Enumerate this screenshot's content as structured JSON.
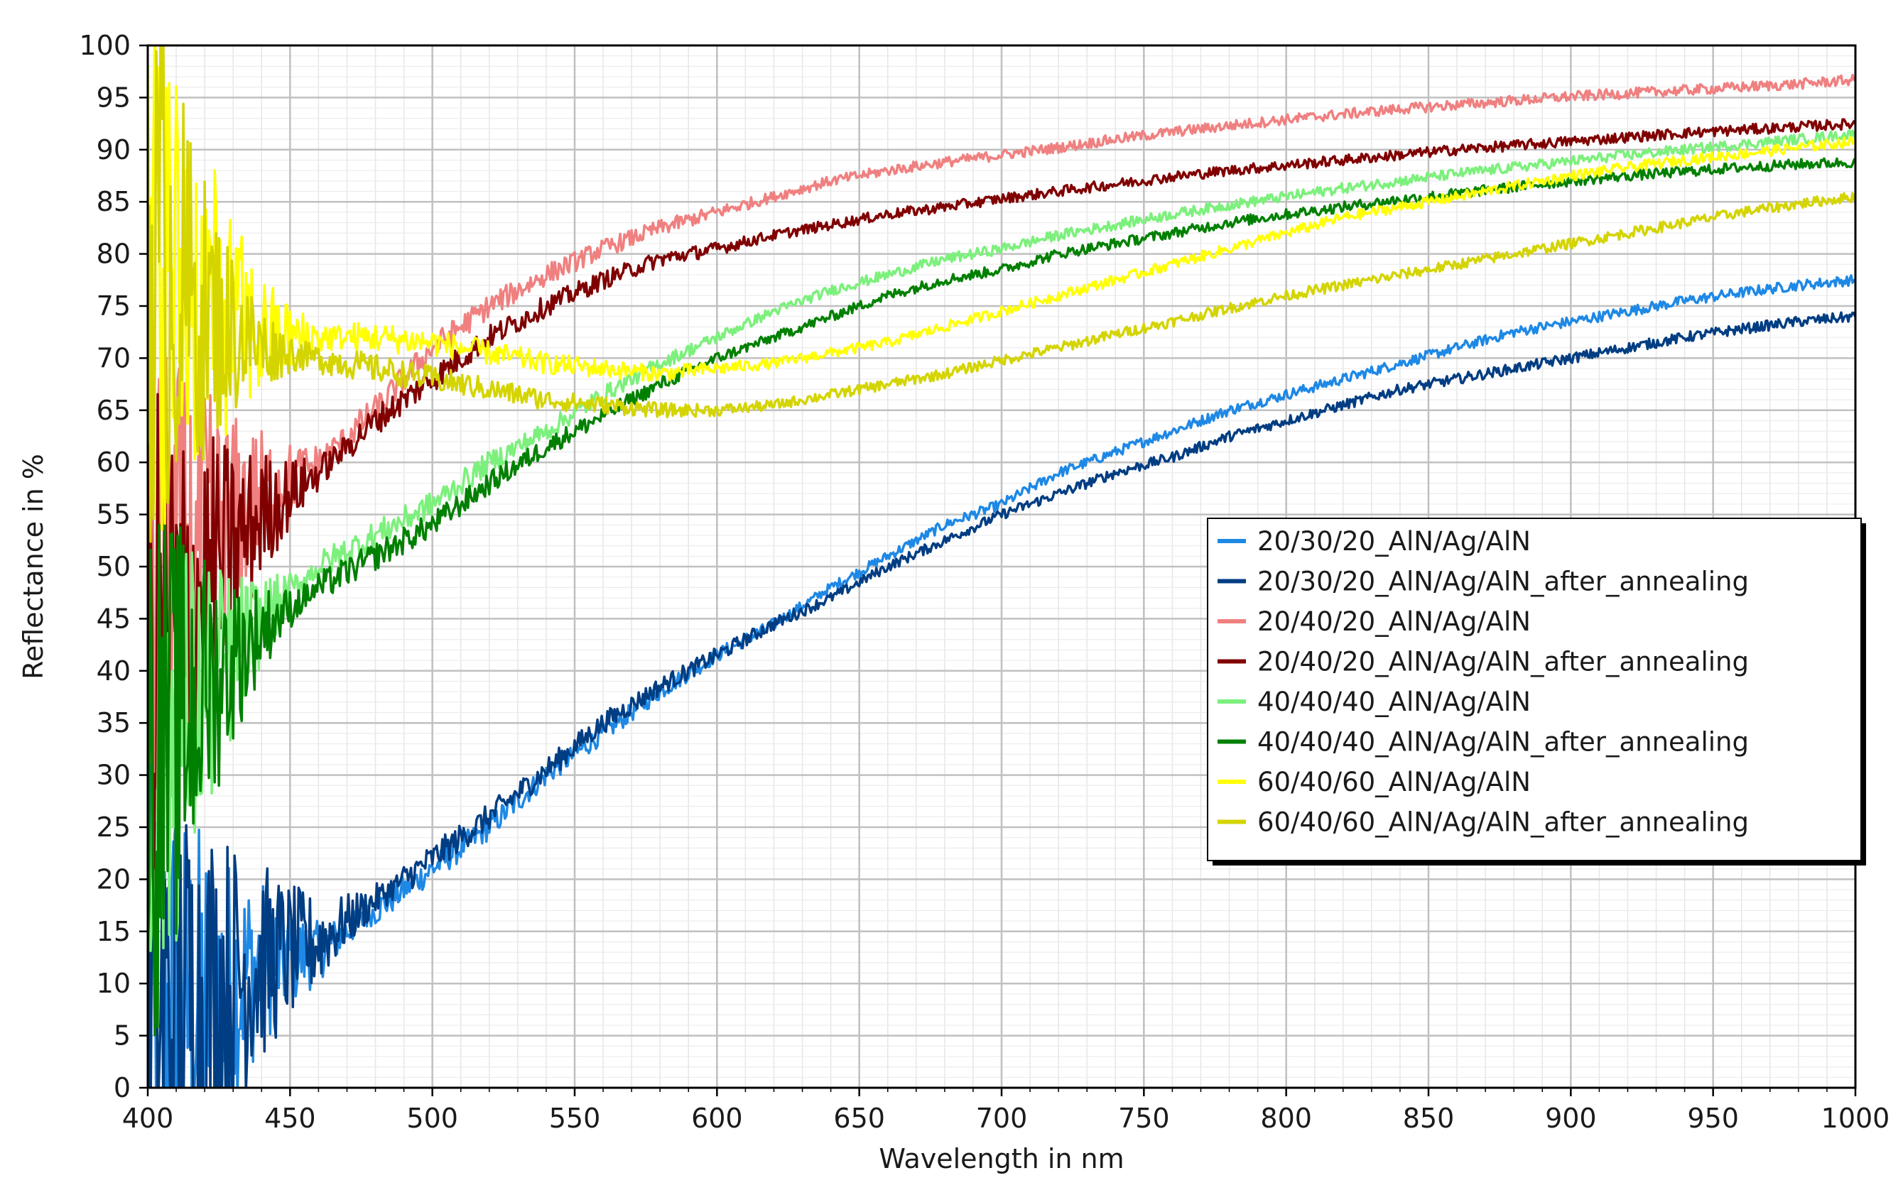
{
  "chart_data": {
    "type": "line",
    "title": "",
    "xlabel": "Wavelength in nm",
    "ylabel": "Reflectance in %",
    "xlim": [
      400,
      1000
    ],
    "ylim": [
      0,
      100
    ],
    "x_ticks": [
      400,
      450,
      500,
      550,
      600,
      650,
      700,
      750,
      800,
      850,
      900,
      950,
      1000
    ],
    "y_ticks": [
      0,
      5,
      10,
      15,
      20,
      25,
      30,
      35,
      40,
      45,
      50,
      55,
      60,
      65,
      70,
      75,
      80,
      85,
      90,
      95,
      100
    ],
    "grid": true,
    "legend_position": "right",
    "x": [
      400,
      420,
      440,
      460,
      480,
      500,
      520,
      540,
      560,
      580,
      600,
      620,
      640,
      660,
      680,
      700,
      720,
      740,
      760,
      780,
      800,
      820,
      840,
      860,
      880,
      900,
      920,
      940,
      960,
      980,
      1000
    ],
    "series": [
      {
        "name": "20/30/20_AlN/Ag/AlN",
        "color": "#1e88e5",
        "noisy_until": 480,
        "values": [
          5,
          8,
          12,
          13,
          17,
          21,
          25,
          30,
          34,
          38,
          41.5,
          44.5,
          48,
          51,
          54,
          56,
          59,
          61,
          63,
          65,
          66.5,
          68,
          69.5,
          71,
          72.5,
          73.5,
          74.5,
          75.5,
          76.3,
          77,
          77.5
        ]
      },
      {
        "name": "20/30/20_AlN/Ag/AlN_after_annealing",
        "color": "#003d82",
        "noisy_until": 490,
        "values": [
          5,
          9,
          12,
          14,
          18,
          22,
          26,
          30.5,
          35,
          38.5,
          41.5,
          44.5,
          47,
          50,
          52.5,
          55,
          57,
          59,
          60.5,
          62.5,
          64,
          65.5,
          67,
          68,
          69,
          70,
          71,
          72,
          72.8,
          73.5,
          74
        ]
      },
      {
        "name": "20/40/20_AlN/Ag/AlN",
        "color": "#f08080",
        "noisy_until": 470,
        "values": [
          45,
          52,
          57,
          60,
          65,
          71,
          75,
          78,
          80.5,
          82.5,
          84,
          85.5,
          87,
          88,
          88.8,
          89.5,
          90.2,
          91,
          91.7,
          92.3,
          92.9,
          93.4,
          93.9,
          94.3,
          94.7,
          95.1,
          95.4,
          95.7,
          96,
          96.3,
          96.7
        ]
      },
      {
        "name": "20/40/20_AlN/Ag/AlN_after_annealing",
        "color": "#800000",
        "noisy_until": 470,
        "values": [
          40,
          48,
          55,
          59,
          64,
          68,
          72,
          75,
          77.5,
          79.5,
          80.5,
          81.8,
          82.8,
          83.8,
          84.5,
          85.3,
          86,
          86.7,
          87.4,
          88,
          88.5,
          89,
          89.5,
          90,
          90.4,
          90.8,
          91.2,
          91.6,
          91.9,
          92.2,
          92.5
        ]
      },
      {
        "name": "40/40/40_AlN/Ag/AlN",
        "color": "#7cf07c",
        "noisy_until": 460,
        "values": [
          30,
          38,
          45,
          50,
          53,
          56,
          60,
          63,
          66.5,
          69.5,
          72,
          74.5,
          76.5,
          78,
          79.5,
          80.5,
          81.8,
          82.8,
          83.8,
          84.7,
          85.5,
          86.3,
          87,
          87.7,
          88.3,
          88.9,
          89.5,
          90,
          90.5,
          91,
          91.5
        ]
      },
      {
        "name": "40/40/40_AlN/Ag/AlN_after_annealing",
        "color": "#008000",
        "noisy_until": 460,
        "values": [
          30,
          38,
          44,
          48,
          51,
          54,
          58,
          61.5,
          64.5,
          67.5,
          70,
          72,
          74,
          76,
          77.5,
          78.5,
          80,
          81,
          82,
          83,
          83.8,
          84.5,
          85.2,
          85.8,
          86.4,
          87,
          87.5,
          87.9,
          88.3,
          88.6,
          88.8
        ]
      },
      {
        "name": "60/40/60_AlN/Ag/AlN",
        "color": "#ffff00",
        "noisy_until": 470,
        "values": [
          80,
          75,
          72,
          72,
          72,
          71.5,
          70.5,
          69.5,
          69,
          68.5,
          69,
          69.5,
          70.5,
          71.5,
          73,
          74.5,
          76,
          77.5,
          79,
          80.5,
          82,
          83.5,
          84.5,
          85.5,
          86.5,
          87.5,
          88.3,
          89,
          89.6,
          90.2,
          90.8
        ]
      },
      {
        "name": "60/40/60_AlN/Ag/AlN_after_annealing",
        "color": "#d4d400",
        "noisy_until": 460,
        "values": [
          80,
          74,
          71,
          70,
          69,
          68,
          67,
          66,
          65.5,
          65,
          65,
          65.5,
          66.5,
          67.5,
          68.5,
          69.8,
          71,
          72.3,
          73.5,
          74.8,
          76,
          77,
          78,
          79,
          80,
          81,
          82,
          83,
          84,
          84.8,
          85.5
        ]
      }
    ]
  }
}
